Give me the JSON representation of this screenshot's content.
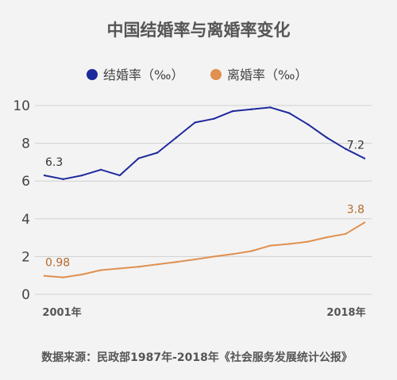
{
  "chart_data": {
    "type": "line",
    "title": "中国结婚率与离婚率变化",
    "x": [
      "2001",
      "2002",
      "2003",
      "2004",
      "2005",
      "2006",
      "2007",
      "2008",
      "2009",
      "2010",
      "2011",
      "2012",
      "2013",
      "2014",
      "2015",
      "2016",
      "2017",
      "2018"
    ],
    "x_tick_labels": [
      "2001年",
      "2018年"
    ],
    "ylim": [
      0,
      10
    ],
    "y_ticks": [
      "0",
      "2",
      "4",
      "6",
      "8",
      "10"
    ],
    "grid": true,
    "legend_position": "top",
    "series": [
      {
        "name": "结婚率（‰）",
        "color": "#1e2a9c",
        "values": [
          6.3,
          6.1,
          6.3,
          6.6,
          6.3,
          7.2,
          7.5,
          8.3,
          9.1,
          9.3,
          9.7,
          9.8,
          9.9,
          9.6,
          9.0,
          8.3,
          7.7,
          7.2
        ]
      },
      {
        "name": "离婚率（‰）",
        "color": "#e0904f",
        "values": [
          0.98,
          0.9,
          1.05,
          1.28,
          1.37,
          1.46,
          1.59,
          1.71,
          1.85,
          2.0,
          2.13,
          2.29,
          2.58,
          2.67,
          2.79,
          3.02,
          3.2,
          3.8
        ]
      }
    ],
    "annotations": [
      {
        "series": 0,
        "index": 0,
        "text": "6.3"
      },
      {
        "series": 0,
        "index": 17,
        "text": "7.2"
      },
      {
        "series": 1,
        "index": 0,
        "text": "0.98"
      },
      {
        "series": 1,
        "index": 17,
        "text": "3.8"
      }
    ]
  },
  "source": "数据来源：民政部1987年-2018年《社会服务发展统计公报》"
}
